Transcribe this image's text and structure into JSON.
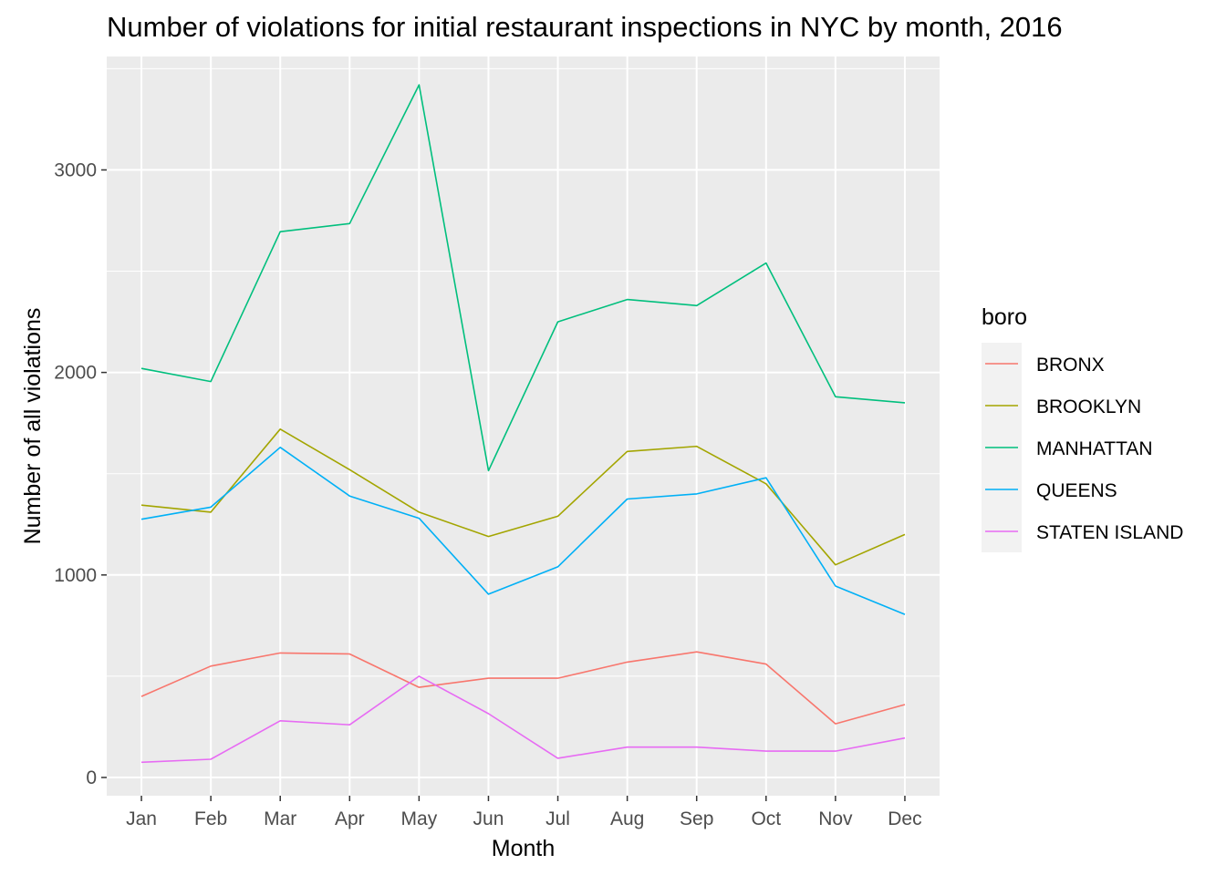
{
  "chart_data": {
    "type": "line",
    "title": "Number of violations for initial restaurant inspections in NYC by month, 2016",
    "xlabel": "Month",
    "ylabel": "Number of all violations",
    "categories": [
      "Jan",
      "Feb",
      "Mar",
      "Apr",
      "May",
      "Jun",
      "Jul",
      "Aug",
      "Sep",
      "Oct",
      "Nov",
      "Dec"
    ],
    "yticks": [
      0,
      1000,
      2000,
      3000
    ],
    "ylim": [
      -90,
      3560
    ],
    "grid": true,
    "legend": {
      "title": "boro",
      "position": "right"
    },
    "series": [
      {
        "name": "BRONX",
        "color": "#F8766D",
        "values": [
          400,
          550,
          615,
          610,
          445,
          490,
          490,
          570,
          620,
          560,
          265,
          360
        ]
      },
      {
        "name": "BROOKLYN",
        "color": "#A3A500",
        "values": [
          1345,
          1310,
          1720,
          1520,
          1310,
          1190,
          1290,
          1610,
          1635,
          1450,
          1050,
          1200
        ]
      },
      {
        "name": "MANHATTAN",
        "color": "#00BF7D",
        "values": [
          2020,
          1955,
          2695,
          2735,
          3420,
          1515,
          2250,
          2360,
          2330,
          2540,
          1880,
          1850
        ]
      },
      {
        "name": "QUEENS",
        "color": "#00B0F6",
        "values": [
          1275,
          1335,
          1630,
          1390,
          1280,
          905,
          1040,
          1375,
          1400,
          1480,
          945,
          805
        ]
      },
      {
        "name": "STATEN ISLAND",
        "color": "#E76BF3",
        "values": [
          75,
          90,
          280,
          260,
          500,
          315,
          95,
          150,
          150,
          130,
          130,
          195
        ]
      }
    ]
  }
}
